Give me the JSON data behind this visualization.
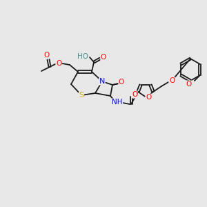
{
  "bg_color": "#e8e8e8",
  "bond_color": "#1a1a1a",
  "atom_colors": {
    "O": "#ff0000",
    "N": "#0000ff",
    "S": "#ccaa00",
    "H": "#4a9090",
    "C": "#1a1a1a"
  },
  "font_size": 7.5,
  "bond_lw": 1.3
}
